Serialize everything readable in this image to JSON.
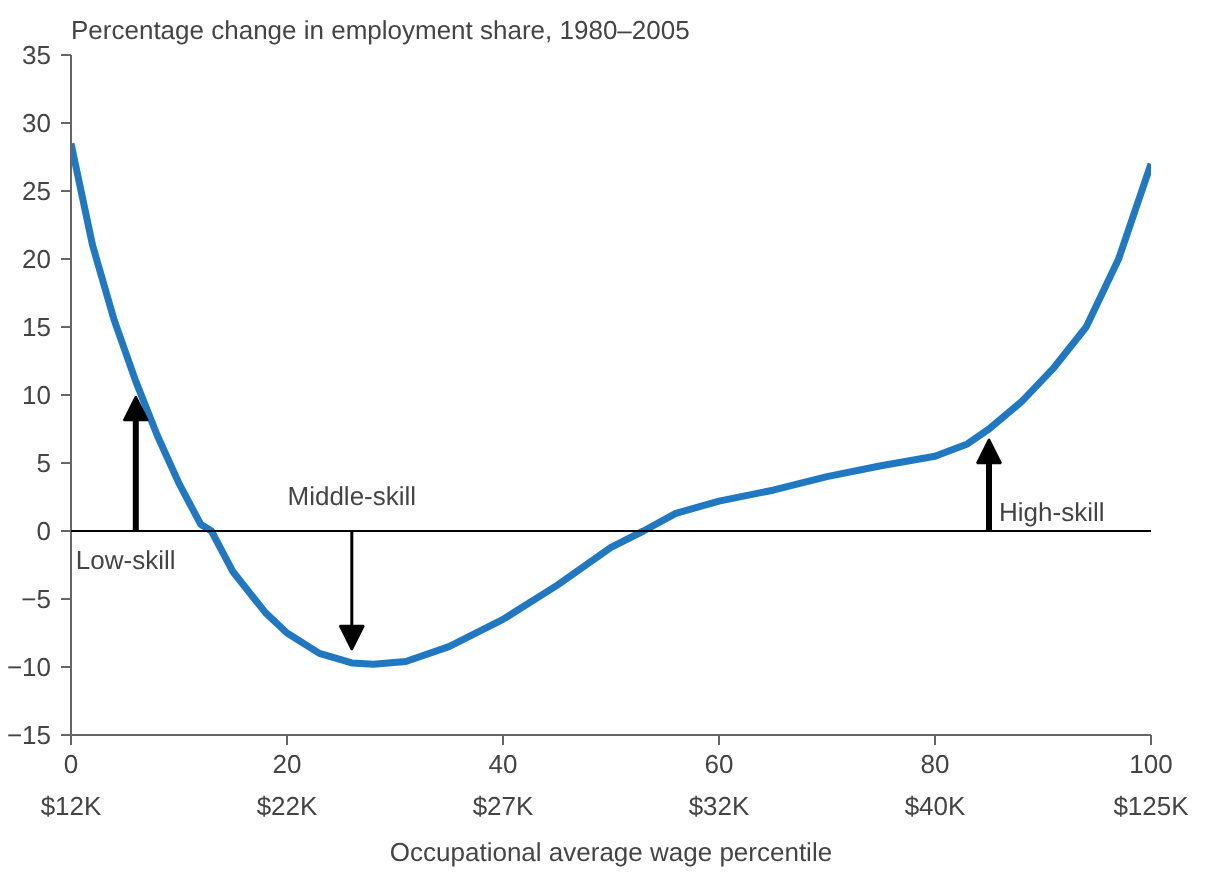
{
  "chart_data": {
    "type": "line",
    "title": "Percentage change in employment share, 1980–2005",
    "xlabel": "Occupational average wage percentile",
    "x": [
      0,
      2,
      4,
      6,
      8,
      10,
      12,
      13,
      15,
      18,
      20,
      23,
      26,
      28,
      31,
      35,
      40,
      45,
      50,
      53,
      56,
      60,
      65,
      70,
      75,
      80,
      83,
      85,
      88,
      91,
      94,
      97,
      100
    ],
    "series": [
      {
        "color": "#1f78c1",
        "values": [
          28.5,
          21,
          15.5,
          11,
          7,
          3.5,
          0.5,
          0,
          -3,
          -6,
          -7.5,
          -9,
          -9.7,
          -9.8,
          -9.6,
          -8.5,
          -6.5,
          -4,
          -1.2,
          0,
          1.3,
          2.2,
          3,
          4,
          4.8,
          5.5,
          6.4,
          7.5,
          9.5,
          12,
          15,
          20,
          27
        ]
      }
    ],
    "xlim": [
      0,
      100
    ],
    "ylim": [
      -15,
      35
    ],
    "xticks": [
      0,
      20,
      40,
      60,
      80,
      100
    ],
    "yticks": [
      {
        "value": -15,
        "label": "−15"
      },
      {
        "value": -10,
        "label": "−10"
      },
      {
        "value": -5,
        "label": "−5"
      },
      0,
      5,
      10,
      15,
      20,
      25,
      30,
      35
    ],
    "ref_lines": [
      {
        "axis": "y",
        "value": 0,
        "color": "#000000"
      }
    ],
    "annotations": [
      {
        "text": "Low-skill",
        "x": 6,
        "y": 11
      },
      {
        "text": "Middle-skill",
        "x": 26,
        "y": -9.7
      },
      {
        "text": "High-skill",
        "x": 85,
        "y": 7.5
      },
      "$12K",
      "$22K",
      "$27K",
      "$32K",
      "$40K",
      "$125K"
    ],
    "grid": false,
    "marker": "none",
    "line_style": "solid"
  }
}
